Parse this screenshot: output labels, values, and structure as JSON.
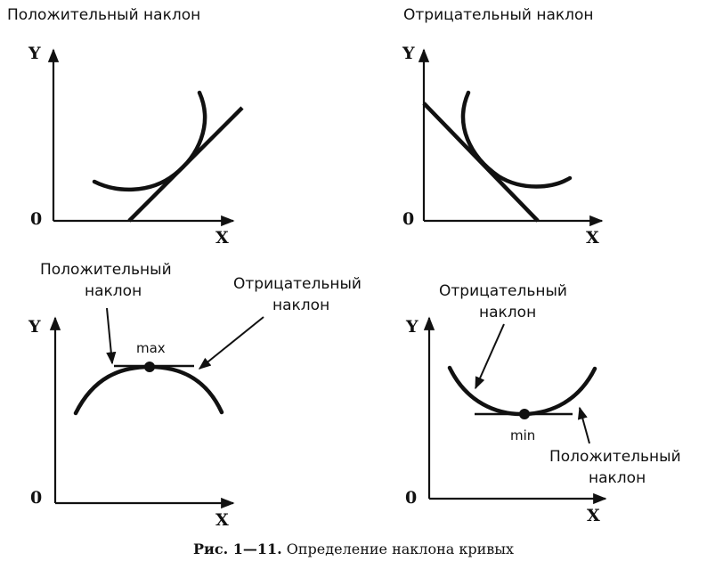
{
  "panels": [
    {
      "title": "Положительный наклон",
      "y": "Y",
      "x": "X",
      "origin": "0"
    },
    {
      "title": "Отрицательный наклон",
      "y": "Y",
      "x": "X",
      "origin": "0"
    },
    {
      "y": "Y",
      "x": "X",
      "origin": "0",
      "left_note_1": "Положительный",
      "left_note_2": "наклон",
      "right_note_1": "Отрицательный",
      "right_note_2": "наклон",
      "point_label": "max"
    },
    {
      "y": "Y",
      "x": "X",
      "origin": "0",
      "top_note_1": "Отрицательный",
      "top_note_2": "наклон",
      "bottom_note_1": "Положительный",
      "bottom_note_2": "наклон",
      "point_label": "min"
    }
  ],
  "caption": {
    "prefix": "Рис. 1—11.",
    "text": " Определение наклона кривых"
  }
}
